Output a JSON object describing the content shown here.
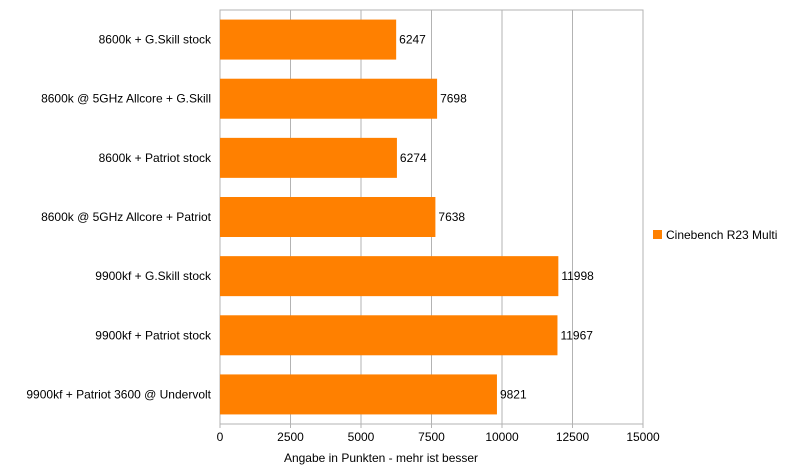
{
  "chart_data": {
    "type": "bar",
    "orientation": "horizontal",
    "categories": [
      "8600k + G.Skill stock",
      "8600k @ 5GHz Allcore + G.Skill",
      "8600k + Patriot stock",
      "8600k @ 5GHz Allcore + Patriot",
      "9900kf + G.Skill stock",
      "9900kf + Patriot stock",
      "9900kf + Patriot 3600 @ Undervolt"
    ],
    "series": [
      {
        "name": "Cinebench R23 Multi",
        "values": [
          6247,
          7698,
          6274,
          7638,
          11998,
          11967,
          9821
        ],
        "color": "#ff8000"
      }
    ],
    "xlabel": "Angabe in Punkten - mehr ist besser",
    "xlim": [
      0,
      15000
    ],
    "xticks": [
      0,
      2500,
      5000,
      7500,
      10000,
      12500,
      15000
    ],
    "grid": "vertical",
    "legend": "right",
    "data_labels": true
  }
}
